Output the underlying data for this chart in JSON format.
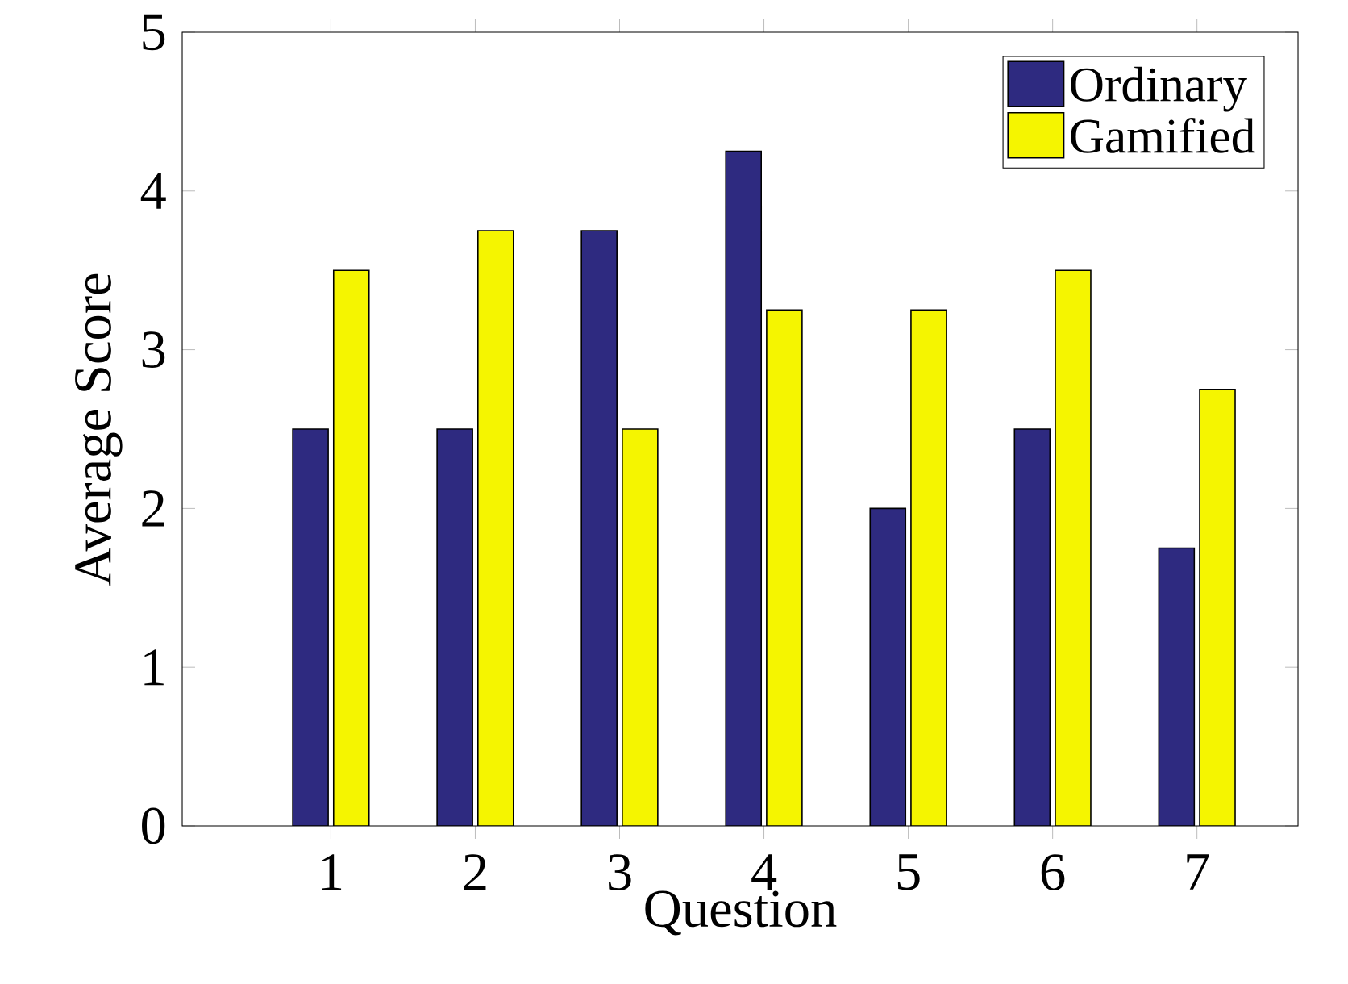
{
  "chart_data": {
    "type": "bar",
    "xlabel": "Question",
    "ylabel": "Average Score",
    "categories": [
      "1",
      "2",
      "3",
      "4",
      "5",
      "6",
      "7"
    ],
    "series": [
      {
        "name": "Ordinary",
        "color": "#2e2a80",
        "values": [
          2.5,
          2.5,
          3.75,
          4.25,
          2,
          2.5,
          1.75
        ]
      },
      {
        "name": "Gamified",
        "color": "#f5f500",
        "values": [
          3.5,
          3.75,
          2.5,
          3.25,
          3.25,
          3.5,
          2.75
        ]
      }
    ],
    "ylim": [
      0,
      5
    ],
    "yticks": [
      0,
      1,
      2,
      3,
      4,
      5
    ],
    "legend": "top right"
  }
}
